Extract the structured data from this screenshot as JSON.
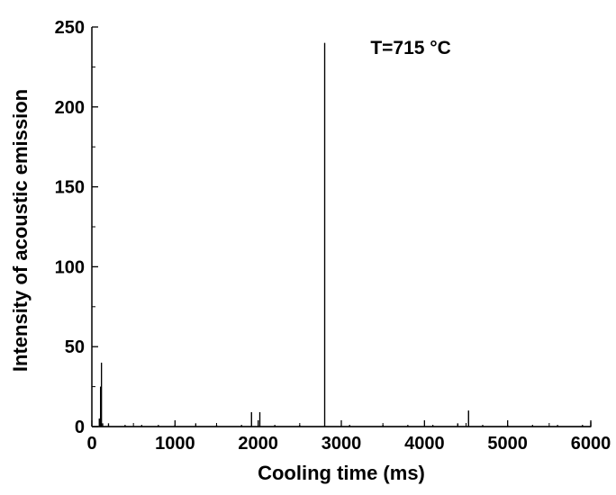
{
  "chart_data": {
    "type": "line",
    "title": "",
    "xlabel": "Cooling time (ms)",
    "ylabel": "Intensity of acoustic emission",
    "xlim": [
      0,
      6000
    ],
    "ylim": [
      0,
      250
    ],
    "x_ticks": [
      0,
      1000,
      2000,
      3000,
      4000,
      5000,
      6000
    ],
    "y_ticks": [
      0,
      50,
      100,
      150,
      200,
      250
    ],
    "x_tick_labels": [
      "0",
      "1000",
      "2000",
      "3000",
      "4000",
      "5000",
      "6000"
    ],
    "y_tick_labels": [
      "0",
      "50",
      "100",
      "150",
      "200",
      "250"
    ],
    "grid": false,
    "legend": "none",
    "annotations": [
      {
        "text": "T=715 °C",
        "x": 3350,
        "y": 233
      }
    ],
    "series": [
      {
        "color": "#000000",
        "points": [
          {
            "x": 90,
            "y": 5
          },
          {
            "x": 105,
            "y": 25
          },
          {
            "x": 115,
            "y": 40
          },
          {
            "x": 130,
            "y": 2
          },
          {
            "x": 200,
            "y": 2
          },
          {
            "x": 400,
            "y": 1
          },
          {
            "x": 600,
            "y": 1
          },
          {
            "x": 800,
            "y": 1
          },
          {
            "x": 1000,
            "y": 1
          },
          {
            "x": 1250,
            "y": 2
          },
          {
            "x": 1500,
            "y": 1
          },
          {
            "x": 1800,
            "y": 1
          },
          {
            "x": 1920,
            "y": 9
          },
          {
            "x": 2020,
            "y": 9
          },
          {
            "x": 2200,
            "y": 1
          },
          {
            "x": 2500,
            "y": 1
          },
          {
            "x": 2800,
            "y": 240
          },
          {
            "x": 3100,
            "y": 1
          },
          {
            "x": 3500,
            "y": 1
          },
          {
            "x": 3800,
            "y": 1
          },
          {
            "x": 4100,
            "y": 1
          },
          {
            "x": 4400,
            "y": 2
          },
          {
            "x": 4530,
            "y": 10
          },
          {
            "x": 4700,
            "y": 1
          },
          {
            "x": 5000,
            "y": 1
          },
          {
            "x": 5300,
            "y": 1
          },
          {
            "x": 5600,
            "y": 1
          },
          {
            "x": 5900,
            "y": 1
          },
          {
            "x": 6000,
            "y": 3
          }
        ]
      }
    ]
  }
}
